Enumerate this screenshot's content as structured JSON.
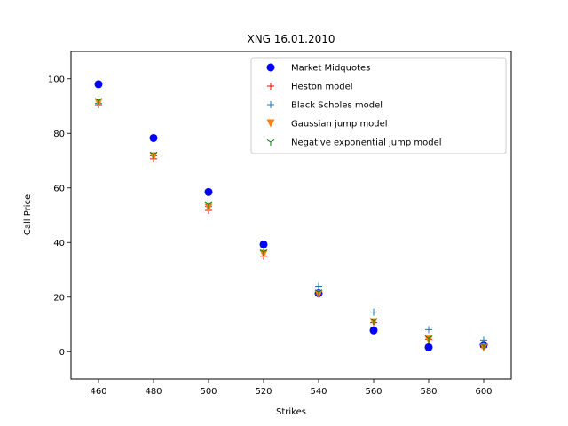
{
  "chart_data": {
    "type": "scatter",
    "title": "XNG 16.01.2010",
    "xlabel": "Strikes",
    "ylabel": "Call Price",
    "xlim": [
      450,
      610
    ],
    "ylim": [
      -10,
      110
    ],
    "xticks": [
      460,
      480,
      500,
      520,
      540,
      560,
      580,
      600
    ],
    "yticks": [
      0,
      20,
      40,
      60,
      80,
      100
    ],
    "grid": false,
    "legend_position": "top-right",
    "x": [
      460,
      480,
      500,
      520,
      540,
      560,
      580,
      600
    ],
    "series": [
      {
        "name": "Market Midquotes",
        "marker": "circle",
        "color": "#0000ff",
        "values": [
          98.0,
          78.3,
          58.5,
          39.3,
          21.4,
          7.8,
          1.6,
          2.5
        ]
      },
      {
        "name": "Heston model",
        "marker": "plus",
        "color": "#ff0000",
        "values": [
          90.5,
          70.7,
          51.8,
          35.0,
          21.0,
          10.6,
          4.5,
          1.5
        ]
      },
      {
        "name": "Black Scholes model",
        "marker": "plus",
        "color": "#1f77b4",
        "values": [
          91.0,
          71.8,
          53.2,
          36.9,
          24.0,
          14.5,
          8.1,
          4.2
        ]
      },
      {
        "name": "Gaussian jump model",
        "marker": "triangle-down",
        "color": "#ff7f0e",
        "values": [
          91.3,
          71.6,
          52.8,
          35.8,
          21.0,
          10.8,
          4.4,
          1.5
        ]
      },
      {
        "name": "Negative exponential jump model",
        "marker": "tri-down",
        "color": "#008000",
        "values": [
          92.0,
          72.3,
          53.9,
          36.5,
          21.8,
          11.3,
          4.9,
          2.2
        ]
      }
    ]
  }
}
